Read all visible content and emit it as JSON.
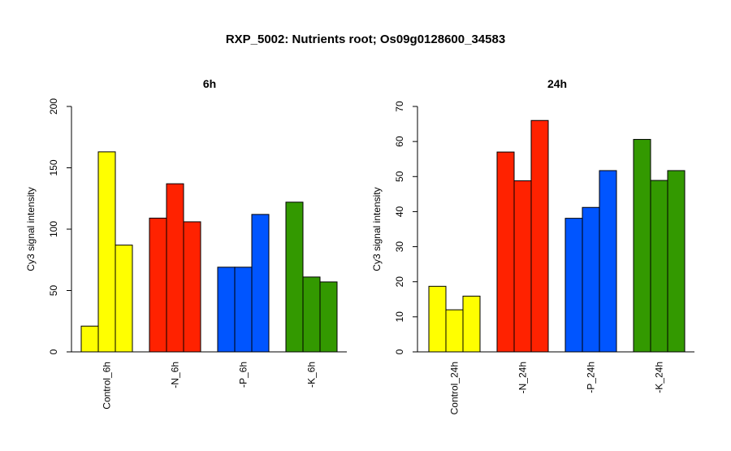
{
  "title": "RXP_5002: Nutrients root; Os09g0128600_34583",
  "colors": {
    "control": "#ffff00",
    "n": "#ff2200",
    "p": "#0055ff",
    "k": "#339900",
    "bar_stroke": "#000000"
  },
  "chart_data": [
    {
      "type": "bar",
      "title": "6h",
      "ylabel": "Cy3 signal intensity",
      "xlabel": "",
      "ylim": [
        0,
        200
      ],
      "yticks": [
        0,
        50,
        100,
        150,
        200
      ],
      "categories": [
        "Control_6h",
        "-N_6h",
        "-P_6h",
        "-K_6h"
      ],
      "category_colors": [
        "#ffff00",
        "#ff2200",
        "#0055ff",
        "#339900"
      ],
      "values": [
        [
          21,
          163,
          87
        ],
        [
          109,
          137,
          106
        ],
        [
          69,
          69,
          112
        ],
        [
          122,
          61,
          57
        ]
      ],
      "grid": false,
      "legend": "none"
    },
    {
      "type": "bar",
      "title": "24h",
      "ylabel": "Cy3 signal intensity",
      "xlabel": "",
      "ylim": [
        0,
        70
      ],
      "yticks": [
        0,
        10,
        20,
        30,
        40,
        50,
        60,
        70
      ],
      "categories": [
        "Control_24h",
        "-N_24h",
        "-P_24h",
        "-K_24h"
      ],
      "category_colors": [
        "#ffff00",
        "#ff2200",
        "#0055ff",
        "#339900"
      ],
      "values": [
        [
          18.7,
          12,
          15.9
        ],
        [
          57,
          48.8,
          66
        ],
        [
          38.1,
          41.2,
          51.7
        ],
        [
          60.6,
          48.9,
          51.7
        ]
      ],
      "grid": false,
      "legend": "none"
    }
  ]
}
